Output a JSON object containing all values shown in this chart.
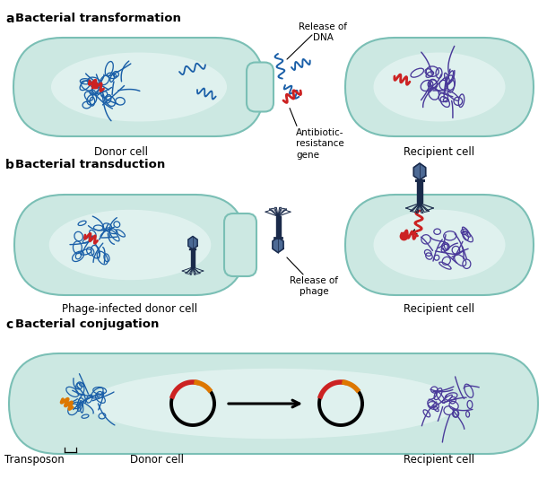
{
  "panel_a_label": "a",
  "panel_b_label": "b",
  "panel_c_label": "c",
  "panel_a_title": "Bacterial transformation",
  "panel_b_title": "Bacterial transduction",
  "panel_c_title": "Bacterial conjugation",
  "labels": {
    "donor_cell": "Donor cell",
    "recipient_cell": "Recipient cell",
    "phage_donor": "Phage-infected donor cell",
    "release_dna": "Release of\nDNA",
    "antibiotic_gene": "Antibiotic-\nresistance\ngene",
    "release_phage": "Release of\nphage",
    "transposon": "Transposon",
    "donor_cell_c": "Donor cell"
  },
  "cell_fill_light": "#cce8e2",
  "cell_fill_center": "#e8f6f4",
  "cell_outline": "#7abfb5",
  "dna_blue": "#1a5fa8",
  "dna_purple": "#4a3a9a",
  "dna_red": "#cc2222",
  "dna_red2": "#aa1144",
  "plasmid_black": "#111111",
  "plasmid_orange": "#dd7700",
  "plasmid_red": "#cc2222",
  "phage_dark": "#1a2a4a",
  "phage_blue": "#3a5a8a",
  "bg_color": "#ffffff",
  "label_fontsize": 8.5,
  "panel_label_fontsize": 10,
  "section_label_fontsize": 9.5
}
